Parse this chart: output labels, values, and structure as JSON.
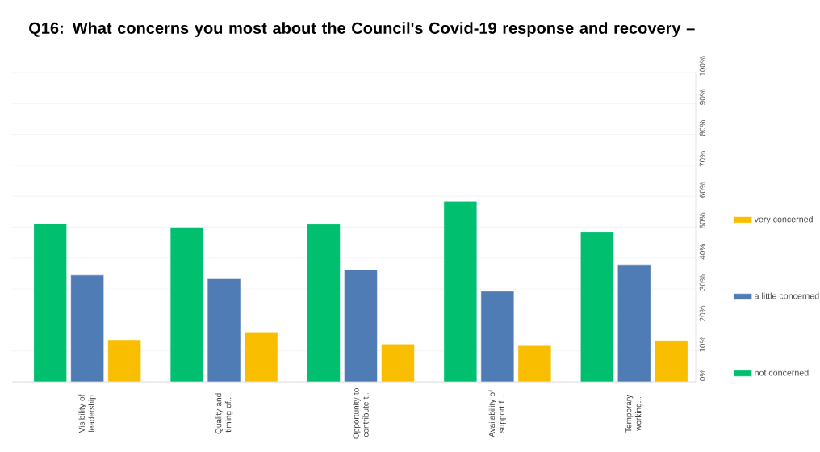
{
  "chart_data": {
    "type": "bar",
    "title": "Q16: What concerns you most about the Council's Covid-19 response and recovery –",
    "categories": [
      "Visibility of leadership",
      "Quality and timing of...",
      "Opportunity to contribute t...",
      "Availability of support f...",
      "Temporary working..."
    ],
    "series": [
      {
        "name": "not concerned",
        "color": "#00bf6f",
        "values": [
          51.2,
          50.0,
          51.0,
          58.4,
          48.4
        ]
      },
      {
        "name": "a little concerned",
        "color": "#507cb6",
        "values": [
          34.5,
          33.3,
          36.2,
          29.3,
          37.9
        ]
      },
      {
        "name": "very concerned",
        "color": "#f9be00",
        "values": [
          13.6,
          16.1,
          12.2,
          11.7,
          13.4
        ]
      }
    ],
    "ylim": [
      0,
      100
    ],
    "yticks": [
      {
        "value": 0,
        "label": "0%"
      },
      {
        "value": 10,
        "label": "10%"
      },
      {
        "value": 20,
        "label": "20%"
      },
      {
        "value": 30,
        "label": "30%"
      },
      {
        "value": 40,
        "label": "40%"
      },
      {
        "value": 50,
        "label": "50%"
      },
      {
        "value": 60,
        "label": "60%"
      },
      {
        "value": 70,
        "label": "70%"
      },
      {
        "value": 80,
        "label": "80%"
      },
      {
        "value": 90,
        "label": "90%"
      },
      {
        "value": 100,
        "label": "100%"
      }
    ],
    "grid": "y",
    "legend": "right"
  }
}
